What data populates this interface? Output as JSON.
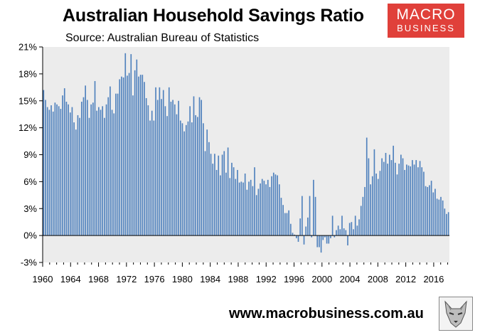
{
  "header": {
    "title": "Australian Household Savings Ratio",
    "source": "Source: Australian Bureau of Statistics"
  },
  "logo": {
    "line1": "MACRO",
    "line2": "BUSINESS",
    "color": "#e0403a"
  },
  "footer": {
    "url": "www.macrobusiness.com.au"
  },
  "fox_logo_icon": "fox-head-icon",
  "chart_data": {
    "type": "bar",
    "bar_color": "#4f81bd",
    "plot_background": "#ececec",
    "grid": false,
    "ylim": [
      -3,
      21
    ],
    "yticks": [
      -3,
      0,
      3,
      6,
      9,
      12,
      15,
      18,
      21
    ],
    "ytick_labels": [
      "-3%",
      "0%",
      "3%",
      "6%",
      "9%",
      "12%",
      "15%",
      "18%",
      "21%"
    ],
    "xtick_labels": [
      "1960",
      "1964",
      "1968",
      "1972",
      "1976",
      "1980",
      "1984",
      "1988",
      "1992",
      "1996",
      "2000",
      "2004",
      "2008",
      "2012",
      "2016"
    ],
    "x_start": 1960,
    "x_end": 2018.25,
    "frequency": "quarterly",
    "series": [
      {
        "values": [
          16.2,
          15.1,
          14.3,
          14.0,
          14.5,
          13.8,
          14.8,
          14.6,
          14.4,
          14.1,
          15.6,
          16.4,
          14.9,
          14.6,
          13.7,
          14.3,
          12.6,
          11.8,
          13.4,
          13.1,
          14.9,
          15.4,
          16.7,
          15.1,
          13.1,
          14.6,
          14.8,
          17.2,
          13.9,
          14.3,
          14.0,
          14.4,
          13.1,
          14.6,
          15.4,
          16.6,
          14.0,
          13.6,
          15.8,
          15.8,
          17.4,
          17.7,
          17.6,
          20.3,
          17.8,
          18.1,
          20.2,
          15.6,
          18.4,
          19.6,
          17.7,
          17.9,
          17.9,
          17.1,
          15.3,
          14.5,
          12.8,
          13.9,
          12.8,
          16.5,
          15.1,
          16.5,
          15.2,
          16.2,
          14.4,
          13.3,
          16.5,
          14.9,
          15.1,
          14.6,
          13.5,
          15.0,
          12.8,
          12.5,
          11.6,
          12.3,
          12.7,
          14.4,
          12.6,
          15.5,
          13.4,
          13.2,
          15.4,
          15.1,
          12.5,
          9.4,
          11.8,
          10.4,
          9.1,
          8.0,
          9.1,
          7.3,
          8.9,
          6.7,
          9.0,
          9.4,
          7.0,
          9.8,
          6.4,
          8.1,
          7.6,
          6.3,
          7.3,
          5.9,
          6.0,
          5.9,
          6.9,
          5.1,
          6.0,
          6.2,
          5.5,
          7.6,
          4.5,
          5.2,
          5.8,
          6.3,
          6.1,
          5.7,
          6.2,
          5.4,
          6.6,
          7.0,
          6.8,
          6.7,
          5.7,
          4.2,
          3.4,
          2.5,
          2.5,
          2.8,
          1.3,
          0.3,
          0.1,
          -0.3,
          -0.7,
          1.9,
          4.4,
          -1.0,
          1.0,
          2.0,
          4.4,
          -0.2,
          6.2,
          4.3,
          -1.3,
          -1.3,
          -1.9,
          -0.5,
          -0.2,
          -0.9,
          -0.9,
          -0.3,
          2.2,
          -0.2,
          0.6,
          1.1,
          0.7,
          2.2,
          0.8,
          0.6,
          -1.1,
          1.4,
          1.5,
          0.7,
          2.2,
          1.1,
          1.8,
          3.3,
          4.3,
          5.4,
          10.9,
          8.6,
          5.7,
          6.6,
          9.6,
          6.9,
          6.3,
          7.2,
          8.6,
          8.2,
          9.2,
          8.0,
          9.0,
          8.4,
          10.0,
          8.1,
          6.8,
          8.0,
          9.0,
          8.6,
          7.3,
          7.9,
          7.8,
          7.7,
          8.4,
          7.9,
          8.4,
          7.6,
          8.3,
          7.6,
          7.1,
          5.5,
          5.4,
          5.6,
          6.1,
          4.8,
          5.2,
          4.1,
          4.0,
          4.3,
          3.9,
          3.0,
          2.4,
          2.6
        ]
      }
    ]
  }
}
